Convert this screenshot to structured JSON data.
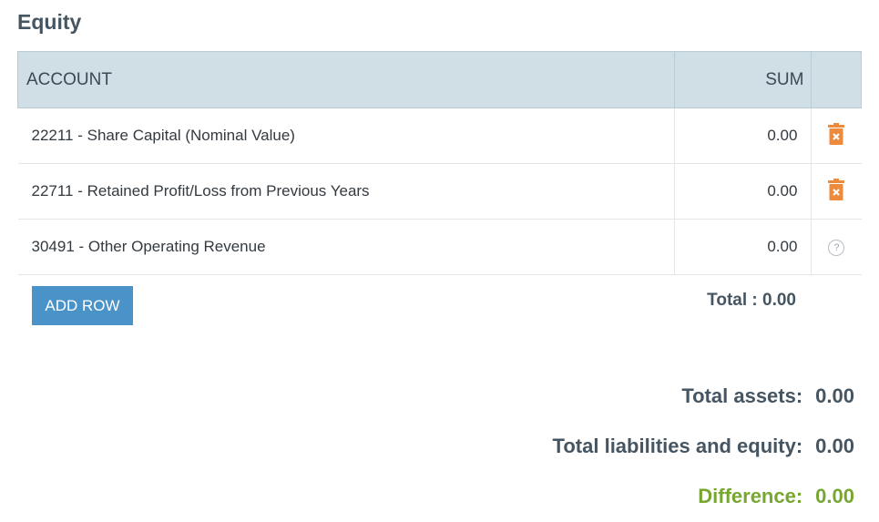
{
  "section": {
    "title": "Equity"
  },
  "table": {
    "headers": {
      "account": "ACCOUNT",
      "sum": "SUM"
    },
    "rows": [
      {
        "account": "22211 - Share Capital (Nominal Value)",
        "sum": "0.00",
        "action_icon": "trash-icon"
      },
      {
        "account": "22711 - Retained Profit/Loss from Previous Years",
        "sum": "0.00",
        "action_icon": "trash-icon"
      },
      {
        "account": "30491 - Other Operating Revenue",
        "sum": "0.00",
        "action_icon": "help-icon",
        "action_glyph": "?"
      }
    ],
    "total_label": "Total : 0.00"
  },
  "buttons": {
    "add_row": "ADD ROW"
  },
  "summary": {
    "total_assets": {
      "label": "Total assets:",
      "value": "0.00"
    },
    "total_liabilities_equity": {
      "label": "Total liabilities and equity:",
      "value": "0.00"
    },
    "difference": {
      "label": "Difference:",
      "value": "0.00"
    }
  },
  "colors": {
    "header_bg": "#cfdfe5",
    "button_bg": "#4a93c9",
    "trash_icon": "#ee8a3c",
    "difference_text": "#77a731",
    "title_text": "#455561"
  }
}
